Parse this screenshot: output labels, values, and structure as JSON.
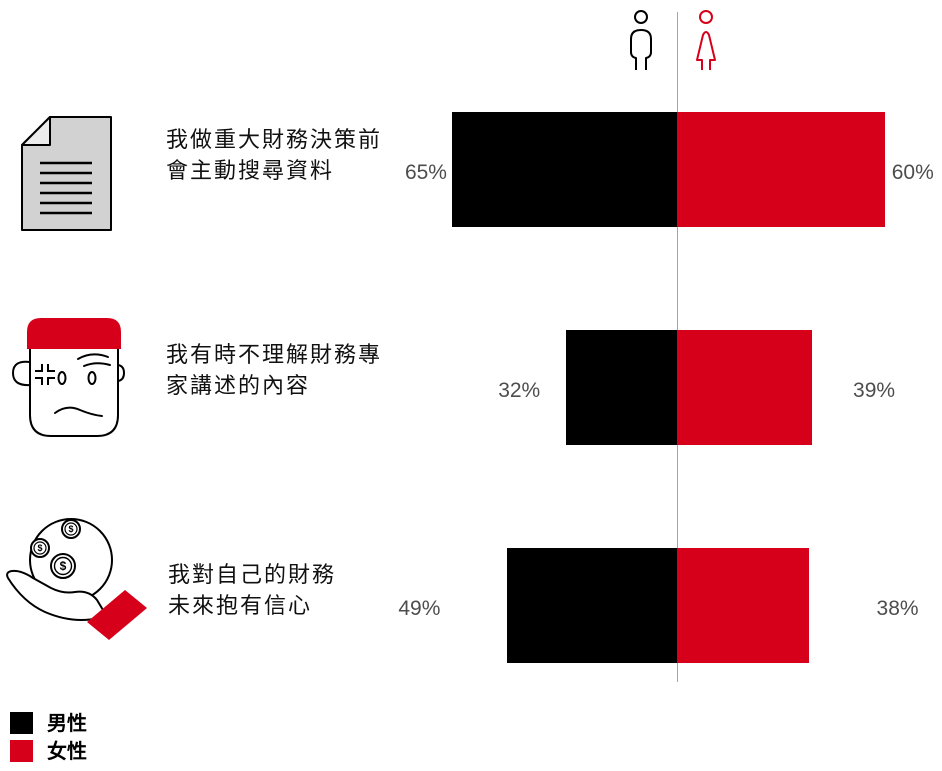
{
  "theme": {
    "accent": "#d7001a",
    "ink": "#000000",
    "document_fill": "#d2d2d2"
  },
  "icons": {
    "header": [
      "male-person-icon",
      "female-person-icon"
    ],
    "rows": [
      "document-icon",
      "frustrated-face-icon",
      "hand-with-coins-icon"
    ],
    "coin_symbol": "$"
  },
  "chart_data": {
    "type": "bar",
    "orientation": "horizontal",
    "categories": [
      "我做重大財務決策前\n會主動搜尋資料",
      "我有時不理解財務專\n家講述的內容",
      "我對自己的財務\n未來抱有信心"
    ],
    "series": [
      {
        "name": "男性",
        "color": "#000000",
        "values": [
          65,
          32,
          49
        ],
        "labels": [
          "65%",
          "32%",
          "49%"
        ]
      },
      {
        "name": "女性",
        "color": "#d7001a",
        "values": [
          60,
          39,
          38
        ],
        "labels": [
          "60%",
          "39%",
          "38%"
        ]
      }
    ],
    "grid": false,
    "legend_position": "bottom-left"
  }
}
